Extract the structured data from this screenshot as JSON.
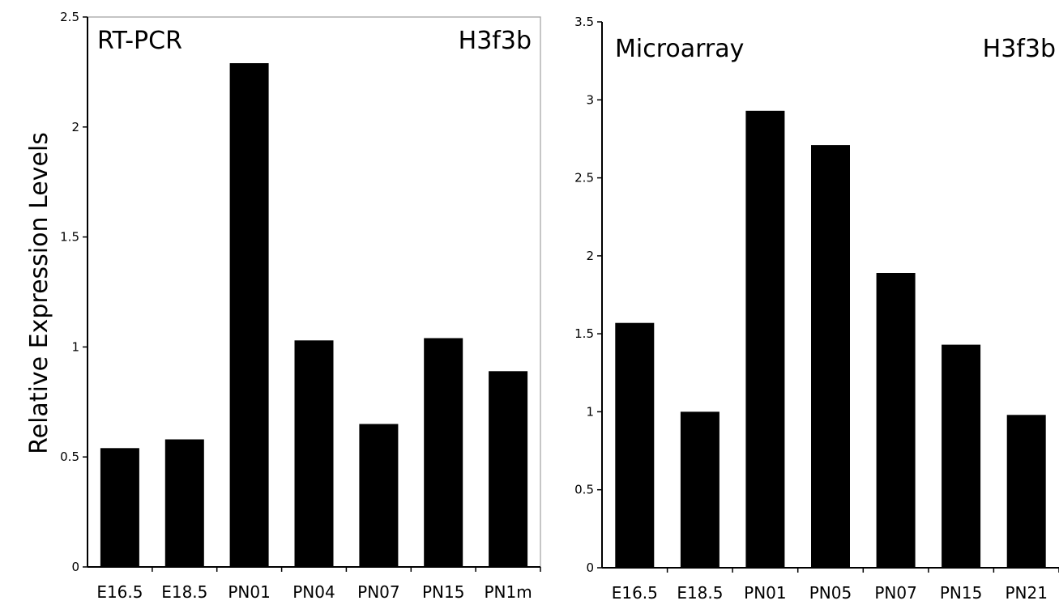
{
  "colors": {
    "bar": "#000000",
    "axis": "#000000",
    "frame": "#a0a0a0",
    "background": "#ffffff"
  },
  "shared_ylabel": "Relative Expression Levels",
  "chart_data": [
    {
      "type": "bar",
      "title": "RT-PCR",
      "gene": "H3f3b",
      "ylabel": "Relative Expression Levels",
      "xlabel": "",
      "ylim": [
        0,
        2.5
      ],
      "yticks": [
        0,
        0.5,
        1,
        1.5,
        2,
        2.5
      ],
      "yticklabels": [
        "0",
        "0.5",
        "1",
        "1.5",
        "2",
        "2.5"
      ],
      "grid": false,
      "categories": [
        "E16.5",
        "E18.5",
        "PN01",
        "PN04",
        "PN07",
        "PN15",
        "PN1m"
      ],
      "values": [
        0.54,
        0.58,
        2.29,
        1.03,
        0.65,
        1.04,
        0.89
      ]
    },
    {
      "type": "bar",
      "title": "Microarray",
      "gene": "H3f3b",
      "ylabel": "",
      "xlabel": "",
      "ylim": [
        0,
        3.5
      ],
      "yticks": [
        0,
        0.5,
        1,
        1.5,
        2,
        2.5,
        3,
        3.5
      ],
      "yticklabels": [
        "0",
        "0.5",
        "1",
        "1.5",
        "2",
        "2.5",
        "3",
        "3.5"
      ],
      "grid": false,
      "categories": [
        "E16.5",
        "E18.5",
        "PN01",
        "PN05",
        "PN07",
        "PN15",
        "PN21"
      ],
      "values": [
        1.57,
        1.0,
        2.93,
        2.71,
        1.89,
        1.43,
        0.98
      ]
    }
  ]
}
